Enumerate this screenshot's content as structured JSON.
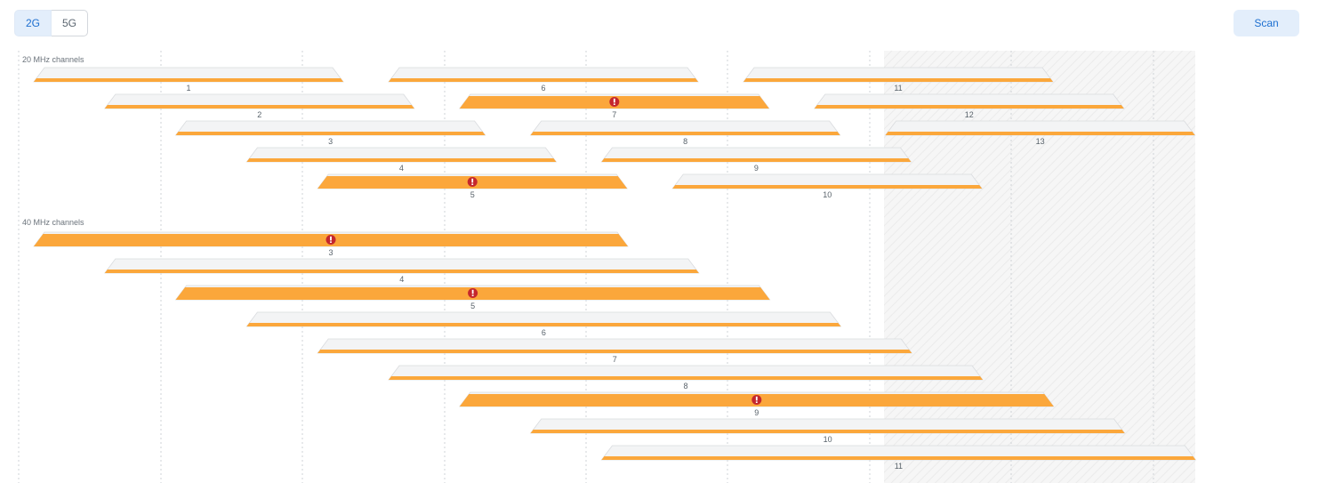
{
  "toolbar": {
    "band_2g": "2G",
    "band_5g": "5G",
    "active_band": "2G",
    "scan_label": "Scan"
  },
  "colors": {
    "accent": "#1d6fd0",
    "active_bg": "#e3eefb",
    "channel_fill": "#fba73b",
    "warning": "#c4272d",
    "unused_bar": "#f3f4f5"
  },
  "icons": {
    "warning": "exclamation-circle-icon"
  },
  "sections": [
    {
      "label": "20 MHz channels",
      "channels": [
        {
          "number": "1",
          "load": "low",
          "warning": false
        },
        {
          "number": "2",
          "load": "low",
          "warning": false
        },
        {
          "number": "3",
          "load": "low",
          "warning": false
        },
        {
          "number": "4",
          "load": "low",
          "warning": false
        },
        {
          "number": "5",
          "load": "high",
          "warning": true
        },
        {
          "number": "6",
          "load": "low",
          "warning": false
        },
        {
          "number": "7",
          "load": "high",
          "warning": true
        },
        {
          "number": "8",
          "load": "low",
          "warning": false
        },
        {
          "number": "9",
          "load": "low",
          "warning": false
        },
        {
          "number": "10",
          "load": "low",
          "warning": false
        },
        {
          "number": "11",
          "load": "low",
          "warning": false
        },
        {
          "number": "12",
          "load": "low",
          "warning": false
        },
        {
          "number": "13",
          "load": "low",
          "warning": false
        }
      ]
    },
    {
      "label": "40 MHz channels",
      "channels": [
        {
          "number": "3",
          "load": "high",
          "warning": true
        },
        {
          "number": "4",
          "load": "low",
          "warning": false
        },
        {
          "number": "5",
          "load": "high",
          "warning": true
        },
        {
          "number": "6",
          "load": "low",
          "warning": false
        },
        {
          "number": "7",
          "load": "low",
          "warning": false
        },
        {
          "number": "8",
          "load": "low",
          "warning": false
        },
        {
          "number": "9",
          "load": "high",
          "warning": true
        },
        {
          "number": "10",
          "load": "low",
          "warning": false
        },
        {
          "number": "11",
          "load": "low",
          "warning": false
        }
      ]
    }
  ]
}
